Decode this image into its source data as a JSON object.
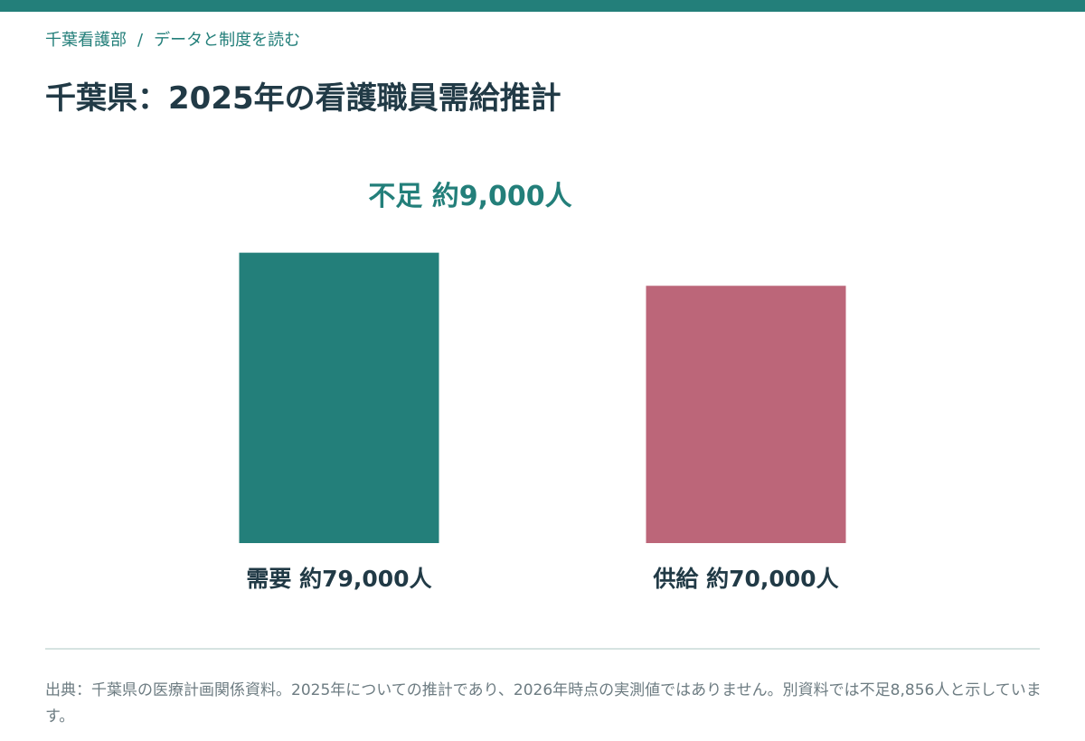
{
  "header": {
    "breadcrumb": [
      "千葉看護部",
      "データと制度を読む"
    ],
    "breadcrumb_separator": "/",
    "title": "千葉県：2025年の看護職員需給推計"
  },
  "colors": {
    "accent": "#237f7a",
    "supply": "#bc6679",
    "text_dark": "#213a46",
    "text_muted": "#6d7c82",
    "divider": "#d6e3e1"
  },
  "chart_data": {
    "type": "bar",
    "categories": [
      "需要",
      "供給"
    ],
    "values": [
      79000,
      70000
    ],
    "bar_labels": [
      "需要 約79,000人",
      "供給 約70,000人"
    ],
    "bar_colors": [
      "#237f7a",
      "#bc6679"
    ],
    "annotation": "不足 約9,000人",
    "title": "",
    "xlabel": "",
    "ylabel": "",
    "ylim": [
      0,
      88500
    ],
    "grid": false,
    "legend": "none"
  },
  "footer": {
    "source_note": "出典：千葉県の医療計画関係資料。2025年についての推計であり、2026年時点の実測値ではありません。別資料では不足8,856人と示しています。"
  }
}
